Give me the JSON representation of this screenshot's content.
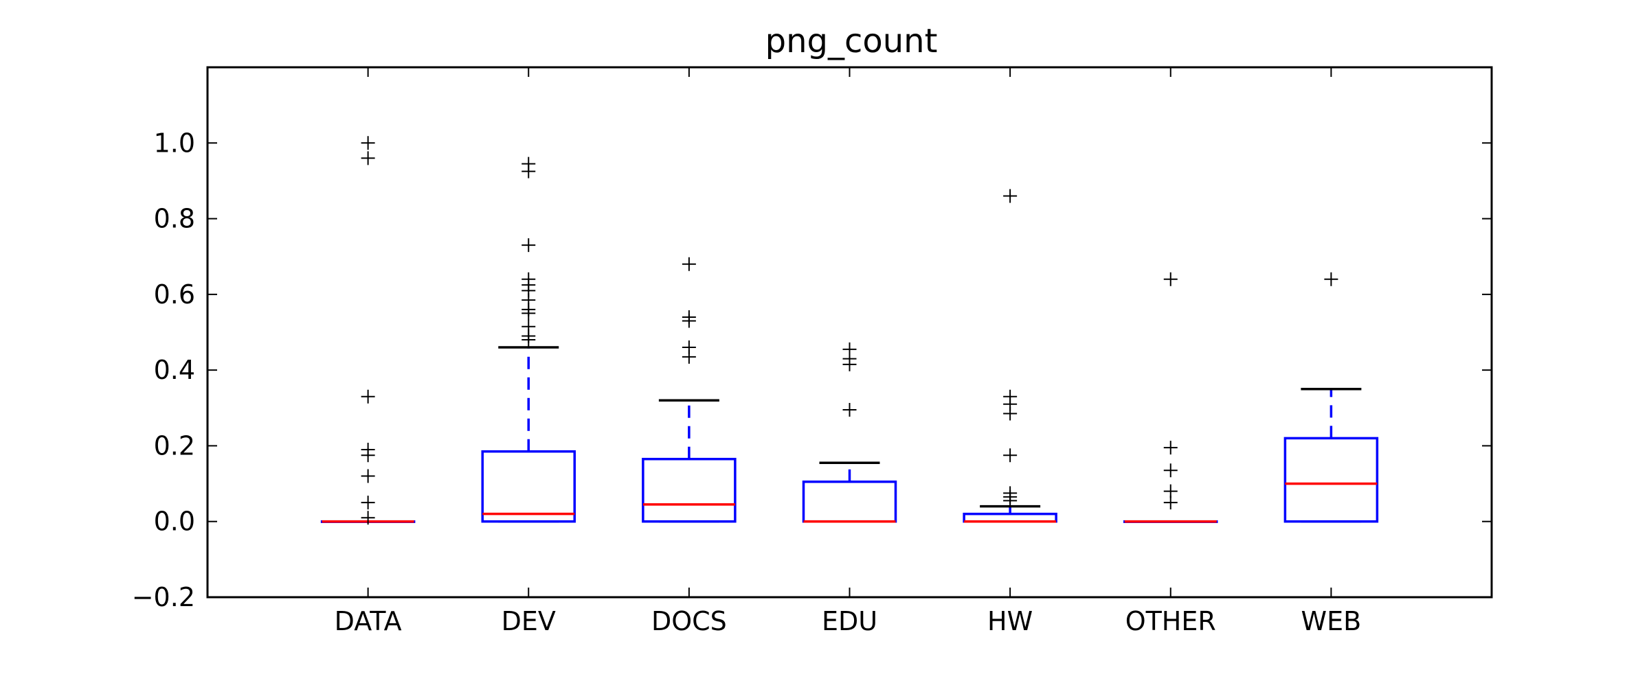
{
  "chart_data": {
    "type": "box",
    "title": "png_count",
    "xlabel": "",
    "ylabel": "",
    "ylim": [
      -0.2,
      1.2
    ],
    "yticks": [
      -0.2,
      0.0,
      0.2,
      0.4,
      0.6,
      0.8,
      1.0
    ],
    "ytick_labels": [
      "−0.2",
      "0.0",
      "0.2",
      "0.4",
      "0.6",
      "0.8",
      "1.0"
    ],
    "categories": [
      "DATA",
      "DEV",
      "DOCS",
      "EDU",
      "HW",
      "OTHER",
      "WEB"
    ],
    "grid": false,
    "legend": "none",
    "colors": {
      "box": "#0000ff",
      "whisker": "#0000ff",
      "median": "#ff0000",
      "cap": "#000000",
      "flier": "#000000"
    },
    "boxes": [
      {
        "category": "DATA",
        "min": 0.0,
        "q1": 0.0,
        "median": 0.0,
        "q3": 0.0,
        "max": 0.0,
        "fliers": [
          1.0,
          0.96,
          0.33,
          0.19,
          0.175,
          0.12,
          0.05,
          0.01
        ]
      },
      {
        "category": "DEV",
        "min": 0.0,
        "q1": 0.0,
        "median": 0.02,
        "q3": 0.185,
        "max": 0.46,
        "fliers": [
          0.945,
          0.925,
          0.73,
          0.64,
          0.625,
          0.61,
          0.585,
          0.56,
          0.55,
          0.515,
          0.49,
          0.48
        ]
      },
      {
        "category": "DOCS",
        "min": 0.0,
        "q1": 0.0,
        "median": 0.045,
        "q3": 0.165,
        "max": 0.32,
        "fliers": [
          0.68,
          0.54,
          0.53,
          0.46,
          0.435
        ]
      },
      {
        "category": "EDU",
        "min": 0.0,
        "q1": 0.0,
        "median": 0.0,
        "q3": 0.105,
        "max": 0.155,
        "fliers": [
          0.455,
          0.43,
          0.415,
          0.295
        ]
      },
      {
        "category": "HW",
        "min": 0.0,
        "q1": 0.0,
        "median": 0.0,
        "q3": 0.02,
        "max": 0.04,
        "fliers": [
          0.86,
          0.33,
          0.31,
          0.285,
          0.175,
          0.075,
          0.065,
          0.055
        ]
      },
      {
        "category": "OTHER",
        "min": 0.0,
        "q1": 0.0,
        "median": 0.0,
        "q3": 0.0,
        "max": 0.0,
        "fliers": [
          0.64,
          0.195,
          0.135,
          0.08,
          0.05
        ]
      },
      {
        "category": "WEB",
        "min": 0.0,
        "q1": 0.0,
        "median": 0.1,
        "q3": 0.22,
        "max": 0.35,
        "fliers": [
          0.64
        ]
      }
    ]
  }
}
